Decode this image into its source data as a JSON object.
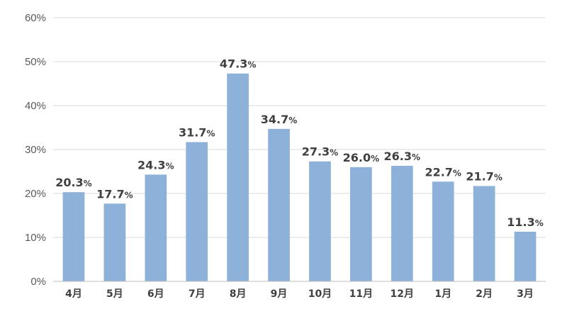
{
  "chart_data": {
    "type": "bar",
    "categories": [
      "4月",
      "5月",
      "6月",
      "7月",
      "8月",
      "9月",
      "10月",
      "11月",
      "12月",
      "1月",
      "2月",
      "3月"
    ],
    "series": [
      {
        "values": [
          20.3,
          17.7,
          24.3,
          31.7,
          47.3,
          34.7,
          27.3,
          26.0,
          26.3,
          22.7,
          21.7,
          11.3
        ]
      }
    ],
    "data_labels": [
      "20.3",
      "17.7",
      "24.3",
      "31.7",
      "47.3",
      "34.7",
      "27.3",
      "26.0",
      "26.3",
      "22.7",
      "21.7",
      "11.3"
    ],
    "data_label_unit": "%",
    "yticks": [
      "0%",
      "10%",
      "20%",
      "30%",
      "40%",
      "50%",
      "60%"
    ],
    "ylim": [
      0,
      60
    ],
    "grid": true,
    "bar_color": "#8eb1d9"
  }
}
